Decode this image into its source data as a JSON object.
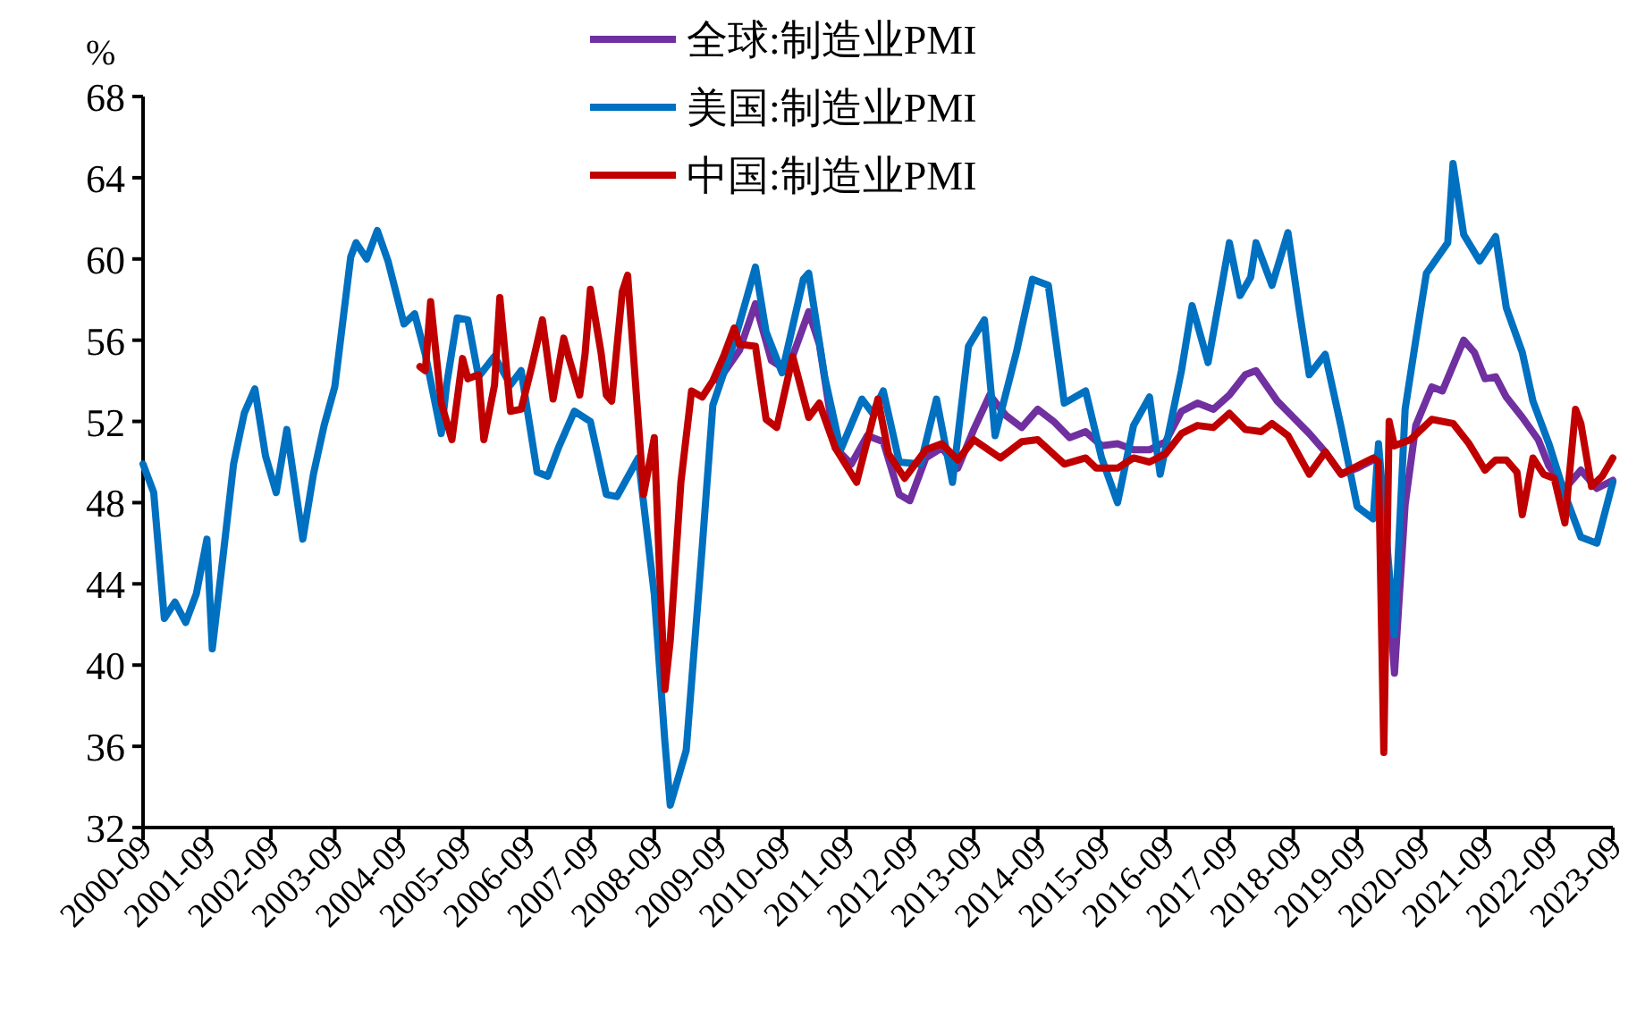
{
  "chart_data": {
    "type": "line",
    "ylabel": "%",
    "legend": "top",
    "xlim": [
      "2000-09",
      "2023-09"
    ],
    "ylim": [
      32,
      68
    ],
    "yticks": [
      32,
      36,
      40,
      44,
      48,
      52,
      56,
      60,
      64,
      68
    ],
    "xticks": [
      "2000-09",
      "2001-09",
      "2002-09",
      "2003-09",
      "2004-09",
      "2005-09",
      "2006-09",
      "2007-09",
      "2008-09",
      "2009-09",
      "2010-09",
      "2011-09",
      "2012-09",
      "2013-09",
      "2014-09",
      "2015-09",
      "2016-09",
      "2017-09",
      "2018-09",
      "2019-09",
      "2020-09",
      "2021-09",
      "2022-09",
      "2023-09"
    ],
    "series": [
      {
        "name": "全球:制造业PMI",
        "color": "#7030a0",
        "x": [
          "2009-09",
          "2010-01",
          "2010-04",
          "2010-07",
          "2010-10",
          "2011-02",
          "2011-04",
          "2011-07",
          "2011-10",
          "2012-01",
          "2012-04",
          "2012-07",
          "2012-09",
          "2012-12",
          "2013-03",
          "2013-06",
          "2013-09",
          "2013-12",
          "2014-03",
          "2014-06",
          "2014-09",
          "2014-12",
          "2015-03",
          "2015-06",
          "2015-09",
          "2015-12",
          "2016-03",
          "2016-06",
          "2016-09",
          "2016-12",
          "2017-03",
          "2017-06",
          "2017-09",
          "2017-12",
          "2018-02",
          "2018-06",
          "2018-09",
          "2018-12",
          "2019-03",
          "2019-06",
          "2019-09",
          "2019-12",
          "2020-01",
          "2020-02",
          "2020-04",
          "2020-06",
          "2020-08",
          "2020-11",
          "2021-01",
          "2021-05",
          "2021-07",
          "2021-09",
          "2021-11",
          "2022-01",
          "2022-04",
          "2022-07",
          "2022-09",
          "2022-12",
          "2023-03",
          "2023-06",
          "2023-09"
        ],
        "values": [
          54.0,
          55.5,
          57.8,
          55.0,
          54.5,
          57.4,
          55.8,
          50.7,
          49.9,
          51.3,
          51.0,
          48.4,
          48.1,
          50.2,
          50.7,
          49.7,
          51.6,
          53.3,
          52.3,
          51.7,
          52.6,
          52.0,
          51.2,
          51.5,
          50.8,
          50.9,
          50.6,
          50.6,
          51.0,
          52.5,
          52.9,
          52.6,
          53.3,
          54.3,
          54.5,
          53.0,
          52.2,
          51.4,
          50.5,
          49.4,
          49.7,
          50.1,
          50.4,
          47.1,
          39.6,
          47.9,
          51.8,
          53.7,
          53.5,
          56.0,
          55.4,
          54.1,
          54.2,
          53.2,
          52.2,
          51.1,
          49.8,
          48.7,
          49.6,
          48.7,
          49.1
        ]
      },
      {
        "name": "美国:制造业PMI",
        "color": "#0070c0",
        "x": [
          "2000-09",
          "2000-11",
          "2001-01",
          "2001-03",
          "2001-05",
          "2001-07",
          "2001-09",
          "2001-10",
          "2001-12",
          "2002-02",
          "2002-04",
          "2002-06",
          "2002-08",
          "2002-10",
          "2002-12",
          "2003-03",
          "2003-05",
          "2003-07",
          "2003-09",
          "2003-12",
          "2004-01",
          "2004-03",
          "2004-05",
          "2004-07",
          "2004-10",
          "2004-12",
          "2005-02",
          "2005-05",
          "2005-06",
          "2005-08",
          "2005-10",
          "2005-12",
          "2006-03",
          "2006-06",
          "2006-08",
          "2006-11",
          "2007-01",
          "2007-03",
          "2007-06",
          "2007-09",
          "2007-12",
          "2008-02",
          "2008-06",
          "2008-09",
          "2008-11",
          "2008-12",
          "2009-03",
          "2009-06",
          "2009-08",
          "2009-12",
          "2010-04",
          "2010-06",
          "2010-09",
          "2011-01",
          "2011-02",
          "2011-05",
          "2011-08",
          "2011-12",
          "2012-02",
          "2012-04",
          "2012-07",
          "2012-11",
          "2013-02",
          "2013-05",
          "2013-08",
          "2013-11",
          "2014-01",
          "2014-05",
          "2014-08",
          "2014-11",
          "2015-02",
          "2015-06",
          "2015-09",
          "2015-12",
          "2016-03",
          "2016-06",
          "2016-08",
          "2016-12",
          "2017-02",
          "2017-05",
          "2017-09",
          "2017-11",
          "2018-01",
          "2018-02",
          "2018-05",
          "2018-08",
          "2018-10",
          "2018-12",
          "2019-03",
          "2019-06",
          "2019-09",
          "2019-12",
          "2020-01",
          "2020-04",
          "2020-06",
          "2020-08",
          "2020-10",
          "2021-02",
          "2021-03",
          "2021-05",
          "2021-08",
          "2021-11",
          "2022-01",
          "2022-04",
          "2022-06",
          "2022-09",
          "2022-12",
          "2023-03",
          "2023-06",
          "2023-09"
        ],
        "values": [
          49.9,
          48.5,
          42.3,
          43.1,
          42.1,
          43.5,
          46.2,
          40.8,
          45.3,
          49.9,
          52.4,
          53.6,
          50.3,
          48.5,
          51.6,
          46.2,
          49.4,
          51.8,
          53.7,
          60.1,
          60.8,
          60.0,
          61.4,
          59.9,
          56.8,
          57.3,
          55.3,
          51.4,
          53.8,
          57.1,
          57.0,
          54.2,
          55.2,
          53.8,
          54.5,
          49.5,
          49.3,
          50.7,
          52.5,
          52.0,
          48.4,
          48.3,
          50.2,
          43.5,
          36.2,
          33.1,
          35.8,
          45.8,
          52.8,
          55.9,
          59.6,
          56.4,
          54.4,
          59.0,
          59.3,
          54.2,
          50.6,
          53.1,
          52.4,
          53.5,
          50.0,
          49.9,
          53.1,
          49.0,
          55.7,
          57.0,
          51.3,
          55.4,
          59.0,
          58.7,
          52.9,
          53.5,
          50.2,
          48.0,
          51.8,
          53.2,
          49.4,
          54.5,
          57.7,
          54.9,
          60.8,
          58.2,
          59.1,
          60.8,
          58.7,
          61.3,
          57.7,
          54.3,
          55.3,
          51.7,
          47.8,
          47.2,
          50.9,
          41.5,
          52.6,
          56.0,
          59.3,
          60.8,
          64.7,
          61.2,
          59.9,
          61.1,
          57.6,
          55.4,
          53.0,
          50.9,
          48.4,
          46.3,
          46.0,
          49.0
        ]
      },
      {
        "name": "中国:制造业PMI",
        "color": "#c00000",
        "x": [
          "2005-01",
          "2005-02",
          "2005-03",
          "2005-05",
          "2005-07",
          "2005-09",
          "2005-10",
          "2005-12",
          "2006-01",
          "2006-03",
          "2006-04",
          "2006-06",
          "2006-08",
          "2006-10",
          "2006-12",
          "2007-02",
          "2007-04",
          "2007-05",
          "2007-07",
          "2007-08",
          "2007-09",
          "2007-11",
          "2007-12",
          "2008-01",
          "2008-03",
          "2008-04",
          "2008-06",
          "2008-07",
          "2008-09",
          "2008-10",
          "2008-11",
          "2008-12",
          "2009-02",
          "2009-04",
          "2009-06",
          "2009-08",
          "2009-10",
          "2009-12",
          "2010-01",
          "2010-04",
          "2010-06",
          "2010-08",
          "2010-11",
          "2011-02",
          "2011-04",
          "2011-07",
          "2011-11",
          "2012-03",
          "2012-05",
          "2012-08",
          "2012-12",
          "2013-03",
          "2013-06",
          "2013-09",
          "2014-02",
          "2014-06",
          "2014-09",
          "2015-02",
          "2015-06",
          "2015-08",
          "2015-12",
          "2016-03",
          "2016-06",
          "2016-09",
          "2016-12",
          "2017-03",
          "2017-06",
          "2017-09",
          "2017-12",
          "2018-03",
          "2018-05",
          "2018-08",
          "2018-12",
          "2019-03",
          "2019-06",
          "2019-09",
          "2019-12",
          "2020-01",
          "2020-02",
          "2020-03",
          "2020-04",
          "2020-07",
          "2020-11",
          "2021-03",
          "2021-06",
          "2021-09",
          "2021-11",
          "2022-01",
          "2022-03",
          "2022-04",
          "2022-06",
          "2022-08",
          "2022-10",
          "2022-12",
          "2023-02",
          "2023-03",
          "2023-05",
          "2023-07",
          "2023-09"
        ],
        "values": [
          54.7,
          54.5,
          57.9,
          52.9,
          51.1,
          55.1,
          54.1,
          54.3,
          51.1,
          53.8,
          58.1,
          52.5,
          52.6,
          54.7,
          57.0,
          53.1,
          56.1,
          55.1,
          53.3,
          55.3,
          58.5,
          55.4,
          53.3,
          53.0,
          58.4,
          59.2,
          52.0,
          48.4,
          51.2,
          44.6,
          38.8,
          41.2,
          49.0,
          53.5,
          53.2,
          54.0,
          55.2,
          56.6,
          55.8,
          55.7,
          52.1,
          51.7,
          55.2,
          52.2,
          52.9,
          50.7,
          49.0,
          53.1,
          50.4,
          49.2,
          50.6,
          50.9,
          50.1,
          51.1,
          50.2,
          51.0,
          51.1,
          49.9,
          50.2,
          49.7,
          49.7,
          50.2,
          50.0,
          50.4,
          51.4,
          51.8,
          51.7,
          52.4,
          51.6,
          51.5,
          51.9,
          51.3,
          49.4,
          50.5,
          49.4,
          49.8,
          50.2,
          50.0,
          35.7,
          52.0,
          50.8,
          51.1,
          52.1,
          51.9,
          50.9,
          49.6,
          50.1,
          50.1,
          49.5,
          47.4,
          50.2,
          49.4,
          49.2,
          47.0,
          52.6,
          51.9,
          48.8,
          49.3,
          50.2
        ]
      }
    ]
  }
}
